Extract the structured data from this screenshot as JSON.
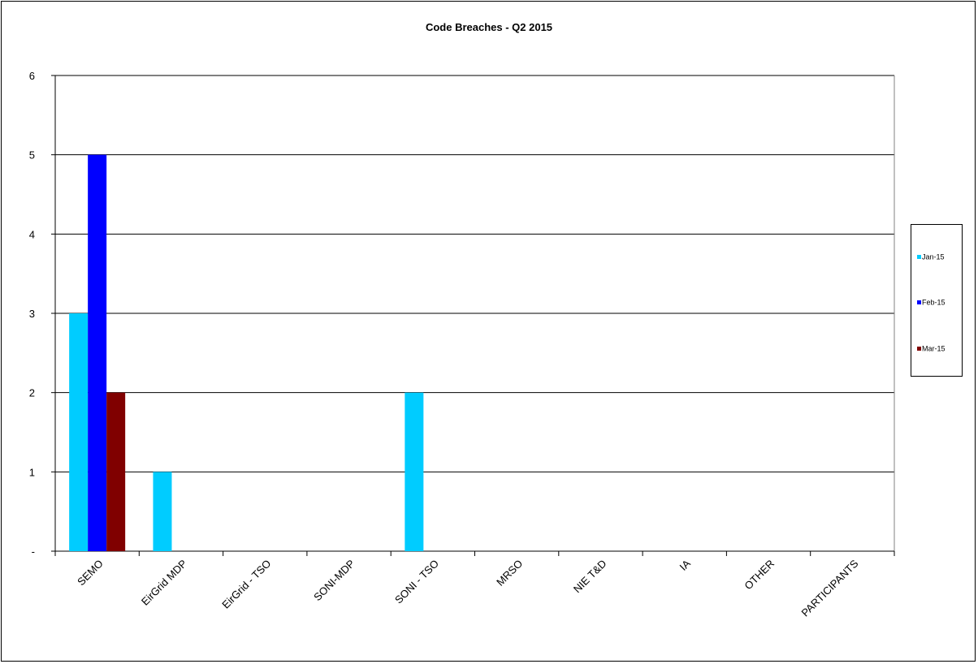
{
  "chart_data": {
    "type": "bar",
    "title": "Code Breaches - Q2 2015",
    "xlabel": "",
    "ylabel": "",
    "categories": [
      "SEMO",
      "EirGrid MDP",
      "EirGrid - TSO",
      "SONI-MDP",
      "SONI - TSO",
      "MRSO",
      "NIE T&D",
      "IA",
      "OTHER",
      "PARTICIPANTS"
    ],
    "series": [
      {
        "name": "Jan-15",
        "color": "#00ccff",
        "values": [
          3,
          1,
          0,
          0,
          2,
          0,
          0,
          0,
          0,
          0
        ]
      },
      {
        "name": "Feb-15",
        "color": "#0000ff",
        "values": [
          5,
          0,
          0,
          0,
          0,
          0,
          0,
          0,
          0,
          0
        ]
      },
      {
        "name": "Mar-15",
        "color": "#800000",
        "values": [
          2,
          0,
          0,
          0,
          0,
          0,
          0,
          0,
          0,
          0
        ]
      }
    ],
    "ylim": [
      0,
      6
    ],
    "yticks": [
      0,
      1,
      2,
      3,
      4,
      5,
      6
    ],
    "ytick_labels": [
      "-",
      "1",
      "2",
      "3",
      "4",
      "5",
      "6"
    ],
    "grid": true,
    "legend_position": "right"
  }
}
